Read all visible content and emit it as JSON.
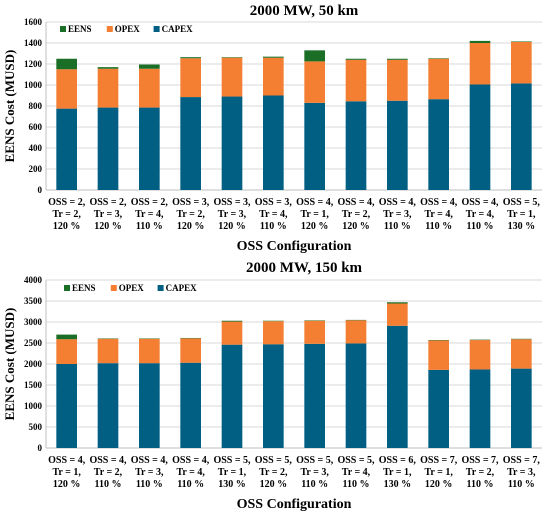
{
  "colors": {
    "CAPEX": "#005f83",
    "OPEX": "#f47e32",
    "EENS": "#1a6e25",
    "grid": "#d9d9d9",
    "axis": "#bfbfbf"
  },
  "chart_data": [
    {
      "type": "bar",
      "stacked": true,
      "title": "2000 MW, 50 km",
      "xlabel": "OSS Configuration",
      "ylabel": "EENS Cost (MUSD)",
      "ylim": [
        0,
        1600
      ],
      "yticks": [
        0,
        200,
        400,
        600,
        800,
        1000,
        1200,
        1400,
        1600
      ],
      "grid": true,
      "legend": {
        "position": "top-left",
        "entries": [
          "EENS",
          "OPEX",
          "CAPEX"
        ]
      },
      "categories": [
        [
          "OSS = 2,",
          "Tr = 2,",
          "120 %"
        ],
        [
          "OSS = 2,",
          "Tr = 3,",
          "120 %"
        ],
        [
          "OSS = 2,",
          "Tr = 4,",
          "110 %"
        ],
        [
          "OSS = 3,",
          "Tr = 2,",
          "120 %"
        ],
        [
          "OSS = 3,",
          "Tr = 3,",
          "120 %"
        ],
        [
          "OSS = 3,",
          "Tr = 4,",
          "110 %"
        ],
        [
          "OSS = 4,",
          "Tr = 1,",
          "120 %"
        ],
        [
          "OSS = 4,",
          "Tr = 2,",
          "120 %"
        ],
        [
          "OSS = 4,",
          "Tr = 3,",
          "110 %"
        ],
        [
          "OSS = 4,",
          "Tr = 4,",
          "110 %"
        ],
        [
          "OSS = 4,",
          "Tr = 4,",
          "110 %"
        ],
        [
          "OSS = 5,",
          "Tr = 1,",
          "130 %"
        ]
      ],
      "series": [
        {
          "name": "CAPEX",
          "values": [
            775,
            785,
            785,
            885,
            890,
            900,
            830,
            845,
            850,
            865,
            1005,
            1015
          ]
        },
        {
          "name": "OPEX",
          "values": [
            375,
            370,
            370,
            370,
            370,
            360,
            395,
            395,
            390,
            385,
            395,
            395
          ]
        },
        {
          "name": "EENS",
          "values": [
            100,
            15,
            40,
            10,
            5,
            10,
            105,
            10,
            10,
            5,
            20,
            5
          ]
        }
      ]
    },
    {
      "type": "bar",
      "stacked": true,
      "title": "2000 MW, 150 km",
      "xlabel": "OSS Configuration",
      "ylabel": "EENS Cost (MUSD)",
      "ylim": [
        0,
        4000
      ],
      "yticks": [
        0,
        500,
        1000,
        1500,
        2000,
        2500,
        3000,
        3500,
        4000
      ],
      "grid": true,
      "legend": {
        "position": "top-left",
        "entries": [
          "EENS",
          "OPEX",
          "CAPEX"
        ]
      },
      "categories": [
        [
          "OSS = 4,",
          "Tr = 1,",
          "120 %"
        ],
        [
          "OSS = 4,",
          "Tr = 2,",
          "110 %"
        ],
        [
          "OSS = 4,",
          "Tr = 3,",
          "110 %"
        ],
        [
          "OSS = 4,",
          "Tr = 4,",
          "110 %"
        ],
        [
          "OSS = 5,",
          "Tr = 1,",
          "130 %"
        ],
        [
          "OSS = 5,",
          "Tr = 2,",
          "120 %"
        ],
        [
          "OSS = 5,",
          "Tr = 3,",
          "110 %"
        ],
        [
          "OSS = 5,",
          "Tr = 4,",
          "110 %"
        ],
        [
          "OSS = 6,",
          "Tr = 1,",
          "130 %"
        ],
        [
          "OSS = 7,",
          "Tr = 1,",
          "120 %"
        ],
        [
          "OSS = 7,",
          "Tr = 2,",
          "110 %"
        ],
        [
          "OSS = 7,",
          "Tr = 3,",
          "110 %"
        ]
      ],
      "series": [
        {
          "name": "CAPEX",
          "values": [
            2000,
            2020,
            2020,
            2030,
            2460,
            2470,
            2480,
            2490,
            2910,
            1860,
            1870,
            1890
          ]
        },
        {
          "name": "OPEX",
          "values": [
            590,
            580,
            580,
            580,
            550,
            550,
            550,
            550,
            530,
            700,
            700,
            700
          ]
        },
        {
          "name": "EENS",
          "values": [
            110,
            10,
            10,
            10,
            20,
            10,
            10,
            10,
            30,
            10,
            10,
            10
          ]
        }
      ]
    }
  ]
}
